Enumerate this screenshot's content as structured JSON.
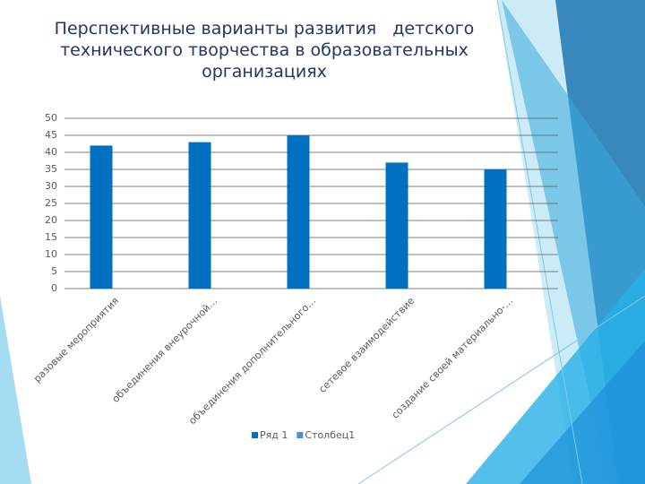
{
  "chart_data": {
    "type": "bar",
    "title": "Перспективные варианты развития   детского технического творчества в образовательных организациях",
    "categories": [
      "разовые мероприятия",
      "объединения внеурочной…",
      "объединения дополнительного…",
      "сетевое взаимодействие",
      "создание своей материально-…"
    ],
    "series": [
      {
        "name": "Ряд 1",
        "color": "#0070c0",
        "values": [
          42,
          43,
          45,
          37,
          35
        ]
      },
      {
        "name": "Столбец1",
        "color": "#4a8fce",
        "values": [
          null,
          null,
          null,
          null,
          null
        ]
      }
    ],
    "ylim": [
      0,
      50
    ],
    "yticks": [
      0,
      5,
      10,
      15,
      20,
      25,
      30,
      35,
      40,
      45,
      50
    ],
    "grid": true,
    "legend": "bottom"
  }
}
